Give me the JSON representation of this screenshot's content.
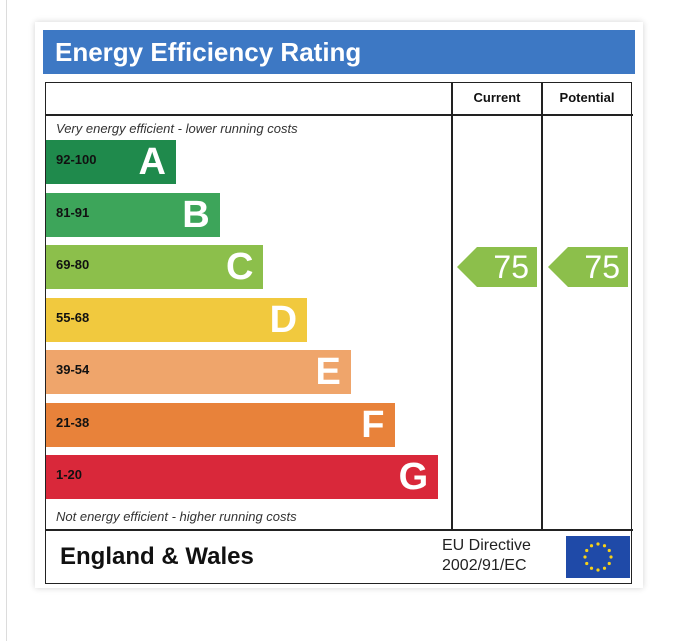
{
  "title": "Energy Efficiency Rating",
  "columns": {
    "current": "Current",
    "potential": "Potential"
  },
  "top_note": "Very energy efficient - lower running costs",
  "bottom_note": "Not energy efficient - higher running costs",
  "footer": {
    "region": "England & Wales",
    "directive_line1": "EU Directive",
    "directive_line2": "2002/91/EC"
  },
  "icons": {
    "eu_flag": "eu-flag-icon"
  },
  "chart_data": {
    "type": "bar",
    "categories": [
      "A",
      "B",
      "C",
      "D",
      "E",
      "F",
      "G"
    ],
    "ranges": [
      "92-100",
      "81-91",
      "69-80",
      "55-68",
      "39-54",
      "21-38",
      "1-20"
    ],
    "colors": [
      "#1f8a4c",
      "#3da55a",
      "#8cbf4b",
      "#f1c93e",
      "#efa56b",
      "#e8823a",
      "#d9283a"
    ],
    "current": {
      "value": 75,
      "band": "C"
    },
    "potential": {
      "value": 75,
      "band": "C"
    }
  }
}
